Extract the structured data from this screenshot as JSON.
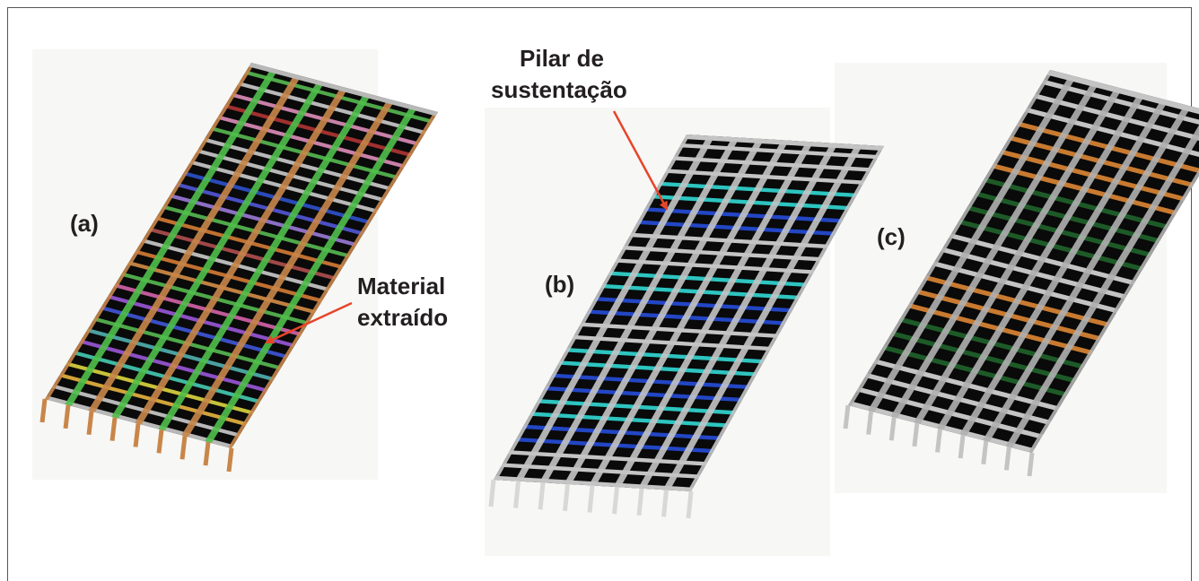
{
  "panels": [
    {
      "label": "(a)",
      "rows": [
        "#b8b8b8",
        "#b8b8b8",
        "#d1a33a",
        "#c7c13a",
        "#3fb8a2",
        "#8c4fc4",
        "#4aa0a0",
        "#4fa84a",
        "#3a4fc4",
        "#8c4fc4",
        "#c05a9a",
        "#4fa84a",
        "#c08040",
        "#c07030",
        "#b8b8b8",
        "#a04848",
        "#c07030",
        "#4fa84a",
        "#8c6fc4",
        "#4a4fc4",
        "#2a4ab8",
        "#b8b8b8",
        "#b8b8b8",
        "#b8b8b8",
        "#4fa84a",
        "#c880a8",
        "#a03030",
        "#c880a8",
        "#b8b8b8",
        "#4fa84a"
      ],
      "cols": [
        "#c8864a",
        "#4fbf4a",
        "#c8864a",
        "#4fbf4a",
        "#c8864a",
        "#4fbf4a",
        "#c8864a",
        "#4fbf4a",
        "#c8864a"
      ],
      "legs": "#c8864a"
    },
    {
      "label": "(b)",
      "rows": [
        "#c4c4c4",
        "#c4c4c4",
        "#c4c4c4",
        "#2346c4",
        "#2346c4",
        "#2ec4c0",
        "#2ec4c0",
        "#2346c4",
        "#2346c4",
        "#2ec4c0",
        "#2ec4c0",
        "#c4c4c4",
        "#c4c4c4",
        "#2346c4",
        "#2346c4",
        "#2ec4c0",
        "#2ec4c0",
        "#c4c4c4",
        "#c4c4c4",
        "#c4c4c4",
        "#2346c4",
        "#2346c4",
        "#2ec4c0",
        "#2ec4c0",
        "#c4c4c4",
        "#c4c4c4",
        "#c4c4c4"
      ],
      "cols": [
        "#c4c4c4",
        "#c4c4c4",
        "#c4c4c4",
        "#c4c4c4",
        "#c4c4c4",
        "#c4c4c4",
        "#c4c4c4",
        "#c4c4c4",
        "#c4c4c4"
      ],
      "legs": "#d8d8d8"
    },
    {
      "label": "(c)",
      "rows": [
        "#c4c4c4",
        "#c4c4c4",
        "#c4c4c4",
        "#c4c4c4",
        "#1e5a28",
        "#1e5a28",
        "#1e5a28",
        "#c87a30",
        "#c87a30",
        "#c87a30",
        "#c4c4c4",
        "#c4c4c4",
        "#c4c4c4",
        "#1e5a28",
        "#1e5a28",
        "#1e5a28",
        "#1e5a28",
        "#c87a30",
        "#c87a30",
        "#c87a30",
        "#c87a30",
        "#c4c4c4",
        "#c4c4c4",
        "#c4c4c4"
      ],
      "cols": [
        "#b0b0b0",
        "#b0b0b0",
        "#b0b0b0",
        "#b0b0b0",
        "#b0b0b0",
        "#b0b0b0",
        "#b0b0b0",
        "#b0b0b0",
        "#b0b0b0"
      ],
      "legs": "#c4c4c4"
    }
  ],
  "annotations": {
    "material_line1": "Material",
    "material_line2": "extraído",
    "pilar_line1": "Pilar de",
    "pilar_line2": "sustentação",
    "arrow_color": "#e8452a"
  },
  "colors": {
    "cell": "#0a0a0a",
    "text": "#231f20"
  }
}
